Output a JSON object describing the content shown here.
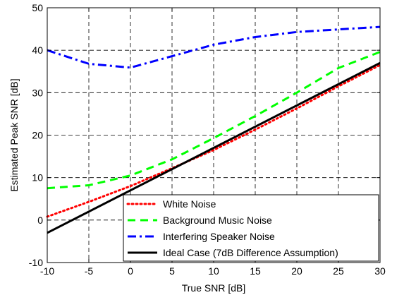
{
  "chart_data": {
    "type": "line",
    "xlabel": "True SNR [dB]",
    "ylabel": "Estimated Peak SNR [dB]",
    "xlim": [
      -10,
      30
    ],
    "ylim": [
      -10,
      50
    ],
    "xticks": [
      -10,
      -5,
      0,
      5,
      10,
      15,
      20,
      25,
      30
    ],
    "yticks": [
      -10,
      0,
      10,
      20,
      30,
      40,
      50
    ],
    "grid": true,
    "legend_position": "bottom-right",
    "series": [
      {
        "name": "White Noise",
        "color": "#ff0000",
        "style": "dotted",
        "x": [
          -10,
          -5,
          0,
          5,
          10,
          15,
          20,
          25,
          30
        ],
        "y": [
          0.8,
          4.3,
          8.0,
          12.2,
          16.5,
          21.3,
          26.3,
          31.5,
          36.5
        ]
      },
      {
        "name": "Background Music Noise",
        "color": "#00ff00",
        "style": "dashed",
        "x": [
          -10,
          -5,
          0,
          5,
          10,
          15,
          20,
          25,
          30
        ],
        "y": [
          7.5,
          8.2,
          10.5,
          14.3,
          19.3,
          24.5,
          30.0,
          35.8,
          39.6
        ]
      },
      {
        "name": "Interfering Speaker Noise",
        "color": "#0000ff",
        "style": "dashdot",
        "x": [
          -10,
          -5,
          0,
          5,
          10,
          15,
          20,
          25,
          30
        ],
        "y": [
          40.0,
          36.8,
          35.9,
          38.6,
          41.3,
          43.1,
          44.3,
          44.9,
          45.5
        ]
      },
      {
        "name": "Ideal Case (7dB Difference Assumption)",
        "color": "#000000",
        "style": "solid",
        "x": [
          -10,
          30
        ],
        "y": [
          -3,
          37
        ]
      }
    ]
  }
}
